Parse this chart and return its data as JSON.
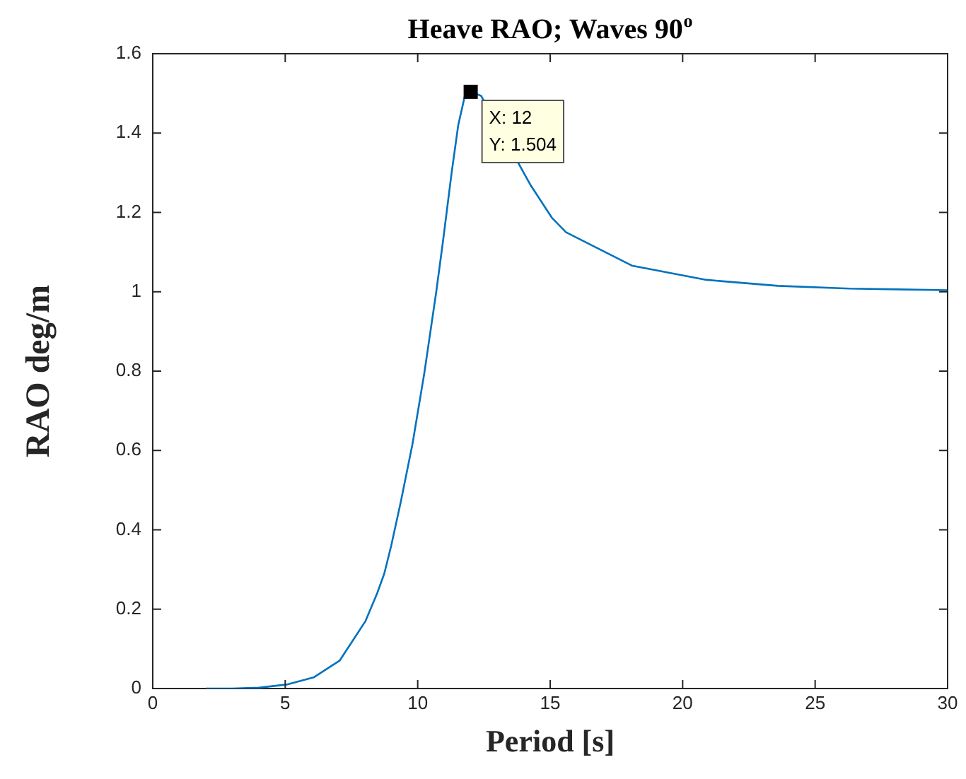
{
  "chart_data": {
    "type": "line",
    "title": "Heave RAO; Waves 90$^{o}$",
    "xlabel": "Period [s]",
    "ylabel": "RAO deg/m",
    "x": [
      2,
      3,
      4,
      5.05,
      6.07,
      7.05,
      8.03,
      8.47,
      8.74,
      9.0,
      9.36,
      9.8,
      10.25,
      10.7,
      10.96,
      11.28,
      11.53,
      11.8,
      12,
      12.39,
      14.25,
      15.06,
      15.6,
      18.08,
      20.9,
      23.6,
      26.3,
      30
    ],
    "series": [
      {
        "color": "#0072bd",
        "values": [
          0,
          0,
          0.002,
          0.01,
          0.028,
          0.07,
          0.17,
          0.24,
          0.29,
          0.36,
          0.47,
          0.615,
          0.795,
          1.0,
          1.13,
          1.3,
          1.42,
          1.5,
          1.504,
          1.494,
          1.27,
          1.187,
          1.15,
          1.066,
          1.03,
          1.015,
          1.008,
          1.004
        ]
      }
    ],
    "annotations": [
      {
        "text": "X: 12\nY: 1.504",
        "x": 12,
        "y": 1.504
      }
    ],
    "xlim": [
      0,
      30
    ],
    "xticks": [
      0,
      5,
      10,
      15,
      20,
      25,
      30
    ],
    "ylim": [
      0,
      1.6
    ],
    "yticks": [
      0,
      0.2,
      0.4,
      0.6,
      0.8,
      1,
      1.2,
      1.4,
      1.6
    ],
    "grid": false,
    "legend": false,
    "marker": "none",
    "line_style": "solid"
  }
}
